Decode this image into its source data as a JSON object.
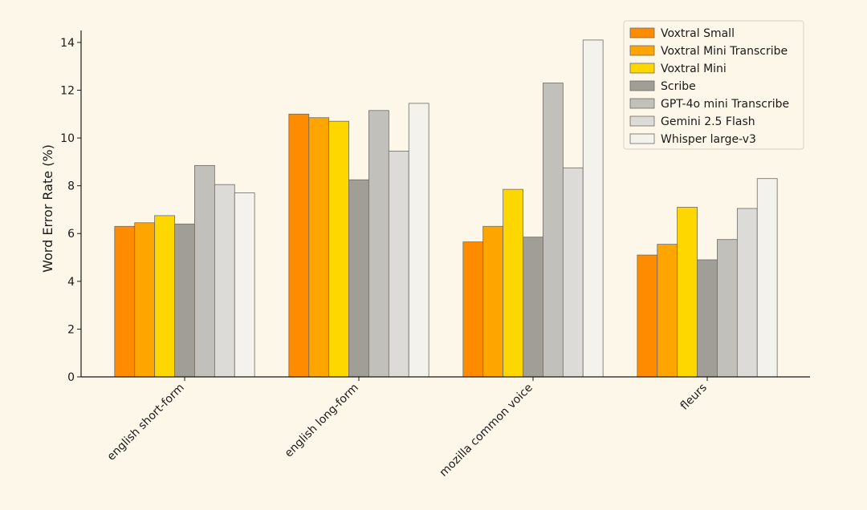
{
  "chart_data": {
    "type": "bar",
    "ylabel": "Word Error Rate (%)",
    "xlabel": "",
    "ylim": [
      0,
      14.5
    ],
    "yticks": [
      0,
      2,
      4,
      6,
      8,
      10,
      12,
      14
    ],
    "grid": false,
    "legend_position": "top-right",
    "categories": [
      "english short-form",
      "english long-form",
      "mozilla common voice",
      "fleurs"
    ],
    "series": [
      {
        "name": "Voxtral Small",
        "color": "#ff8c00",
        "values": [
          6.3,
          11.0,
          5.65,
          5.1
        ]
      },
      {
        "name": "Voxtral Mini Transcribe",
        "color": "#ffa500",
        "values": [
          6.45,
          10.85,
          6.3,
          5.55
        ]
      },
      {
        "name": "Voxtral Mini",
        "color": "#ffd700",
        "values": [
          6.75,
          10.7,
          7.85,
          7.1
        ]
      },
      {
        "name": "Scribe",
        "color": "#a19e98",
        "values": [
          6.4,
          8.25,
          5.85,
          4.9
        ]
      },
      {
        "name": "GPT-4o mini Transcribe",
        "color": "#c2c0bb",
        "values": [
          8.85,
          11.15,
          12.3,
          5.75
        ]
      },
      {
        "name": "Gemini 2.5 Flash",
        "color": "#dcdbd7",
        "values": [
          8.05,
          9.45,
          8.75,
          7.05
        ]
      },
      {
        "name": "Whisper large-v3",
        "color": "#f3f2ec",
        "values": [
          7.7,
          11.45,
          14.1,
          8.3
        ]
      }
    ]
  }
}
